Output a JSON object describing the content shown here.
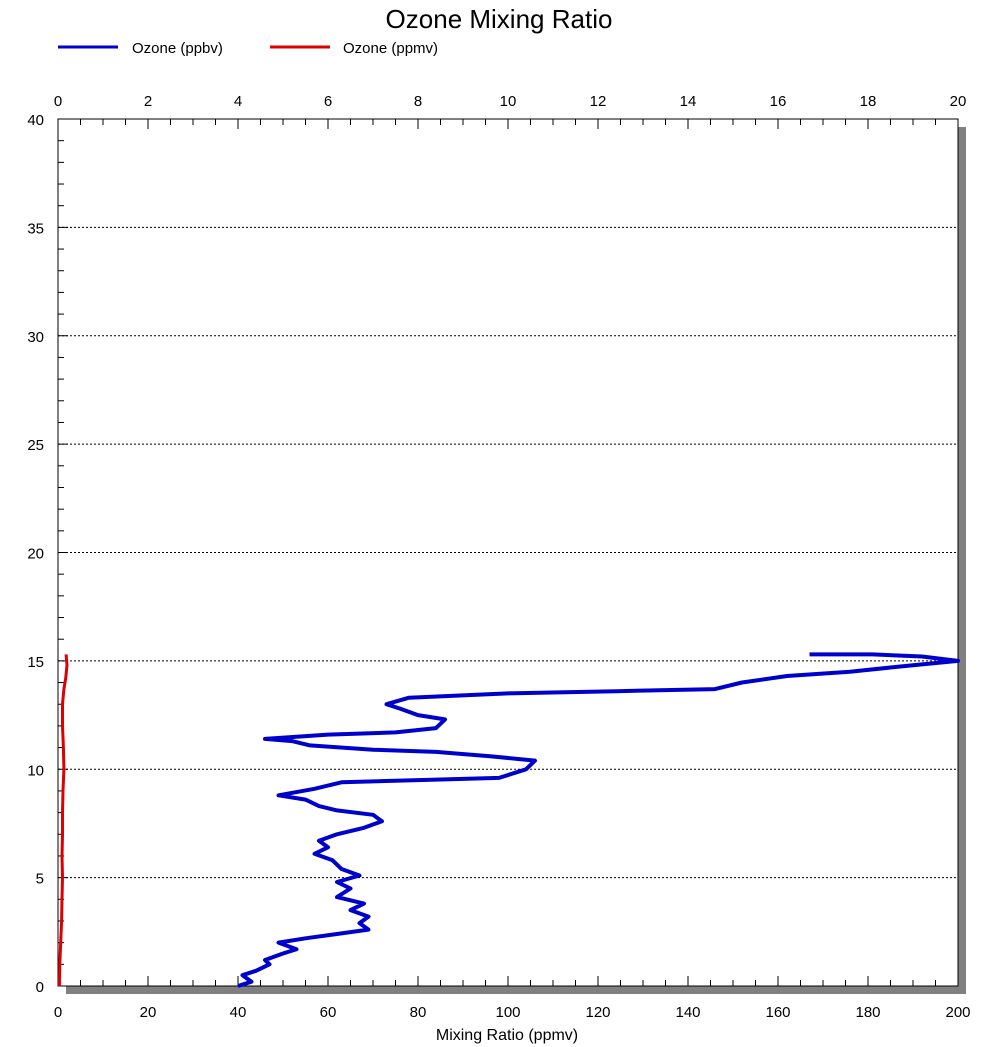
{
  "chart_data": {
    "type": "line",
    "title": "Ozone Mixing Ratio",
    "xlabel": "Mixing Ratio (ppmv)",
    "ylabel": "",
    "xlim_bottom": [
      0,
      200
    ],
    "xlim_top": [
      0,
      20
    ],
    "ylim": [
      0,
      40
    ],
    "x_ticks_bottom": [
      "0",
      "20",
      "40",
      "60",
      "80",
      "100",
      "120",
      "140",
      "160",
      "180",
      "200"
    ],
    "x_ticks_top": [
      "0",
      "2",
      "4",
      "6",
      "8",
      "10",
      "12",
      "14",
      "16",
      "18",
      "20"
    ],
    "y_ticks": [
      "0",
      "5",
      "10",
      "15",
      "20",
      "25",
      "30",
      "35",
      "40"
    ],
    "grid": "horizontal dotted",
    "legend_position": "top-left",
    "series": [
      {
        "name": "Ozone (ppbv)",
        "color": "#0000cc",
        "axis": "bottom",
        "points": [
          [
            40,
            0.0
          ],
          [
            43,
            0.2
          ],
          [
            41,
            0.5
          ],
          [
            44,
            0.7
          ],
          [
            47,
            1.0
          ],
          [
            46,
            1.2
          ],
          [
            50,
            1.5
          ],
          [
            53,
            1.7
          ],
          [
            49,
            2.0
          ],
          [
            55,
            2.2
          ],
          [
            62,
            2.4
          ],
          [
            69,
            2.6
          ],
          [
            67,
            2.9
          ],
          [
            69,
            3.2
          ],
          [
            65,
            3.5
          ],
          [
            68,
            3.8
          ],
          [
            62,
            4.1
          ],
          [
            65,
            4.5
          ],
          [
            62,
            4.8
          ],
          [
            67,
            5.1
          ],
          [
            63,
            5.4
          ],
          [
            61,
            5.8
          ],
          [
            57,
            6.1
          ],
          [
            60,
            6.4
          ],
          [
            58,
            6.7
          ],
          [
            62,
            7.0
          ],
          [
            68,
            7.3
          ],
          [
            72,
            7.6
          ],
          [
            70,
            7.9
          ],
          [
            62,
            8.1
          ],
          [
            58,
            8.3
          ],
          [
            55,
            8.6
          ],
          [
            49,
            8.8
          ],
          [
            57,
            9.1
          ],
          [
            63,
            9.4
          ],
          [
            80,
            9.5
          ],
          [
            98,
            9.6
          ],
          [
            104,
            10.0
          ],
          [
            106,
            10.4
          ],
          [
            96,
            10.6
          ],
          [
            84,
            10.8
          ],
          [
            70,
            10.9
          ],
          [
            56,
            11.1
          ],
          [
            52,
            11.3
          ],
          [
            46,
            11.4
          ],
          [
            60,
            11.6
          ],
          [
            75,
            11.7
          ],
          [
            84,
            11.9
          ],
          [
            86,
            12.3
          ],
          [
            80,
            12.5
          ],
          [
            76,
            12.8
          ],
          [
            73,
            13.0
          ],
          [
            78,
            13.3
          ],
          [
            100,
            13.5
          ],
          [
            124,
            13.6
          ],
          [
            146,
            13.7
          ],
          [
            152,
            14.0
          ],
          [
            162,
            14.3
          ],
          [
            176,
            14.5
          ],
          [
            190,
            14.8
          ],
          [
            200,
            15.0
          ],
          [
            192,
            15.2
          ],
          [
            181,
            15.3
          ],
          [
            167,
            15.3
          ]
        ]
      },
      {
        "name": "Ozone (ppmv)",
        "color": "#dd0000",
        "axis": "bottom",
        "points": [
          [
            0.3,
            0.0
          ],
          [
            0.4,
            1.0
          ],
          [
            0.6,
            2.0
          ],
          [
            0.8,
            3.0
          ],
          [
            0.9,
            4.0
          ],
          [
            1.0,
            5.0
          ],
          [
            0.9,
            6.0
          ],
          [
            1.0,
            7.0
          ],
          [
            1.0,
            8.0
          ],
          [
            1.1,
            9.0
          ],
          [
            1.3,
            10.0
          ],
          [
            1.2,
            11.0
          ],
          [
            1.0,
            12.0
          ],
          [
            1.0,
            13.0
          ],
          [
            1.3,
            13.7
          ],
          [
            1.7,
            14.2
          ],
          [
            2.0,
            14.8
          ],
          [
            1.8,
            15.3
          ]
        ]
      }
    ]
  }
}
